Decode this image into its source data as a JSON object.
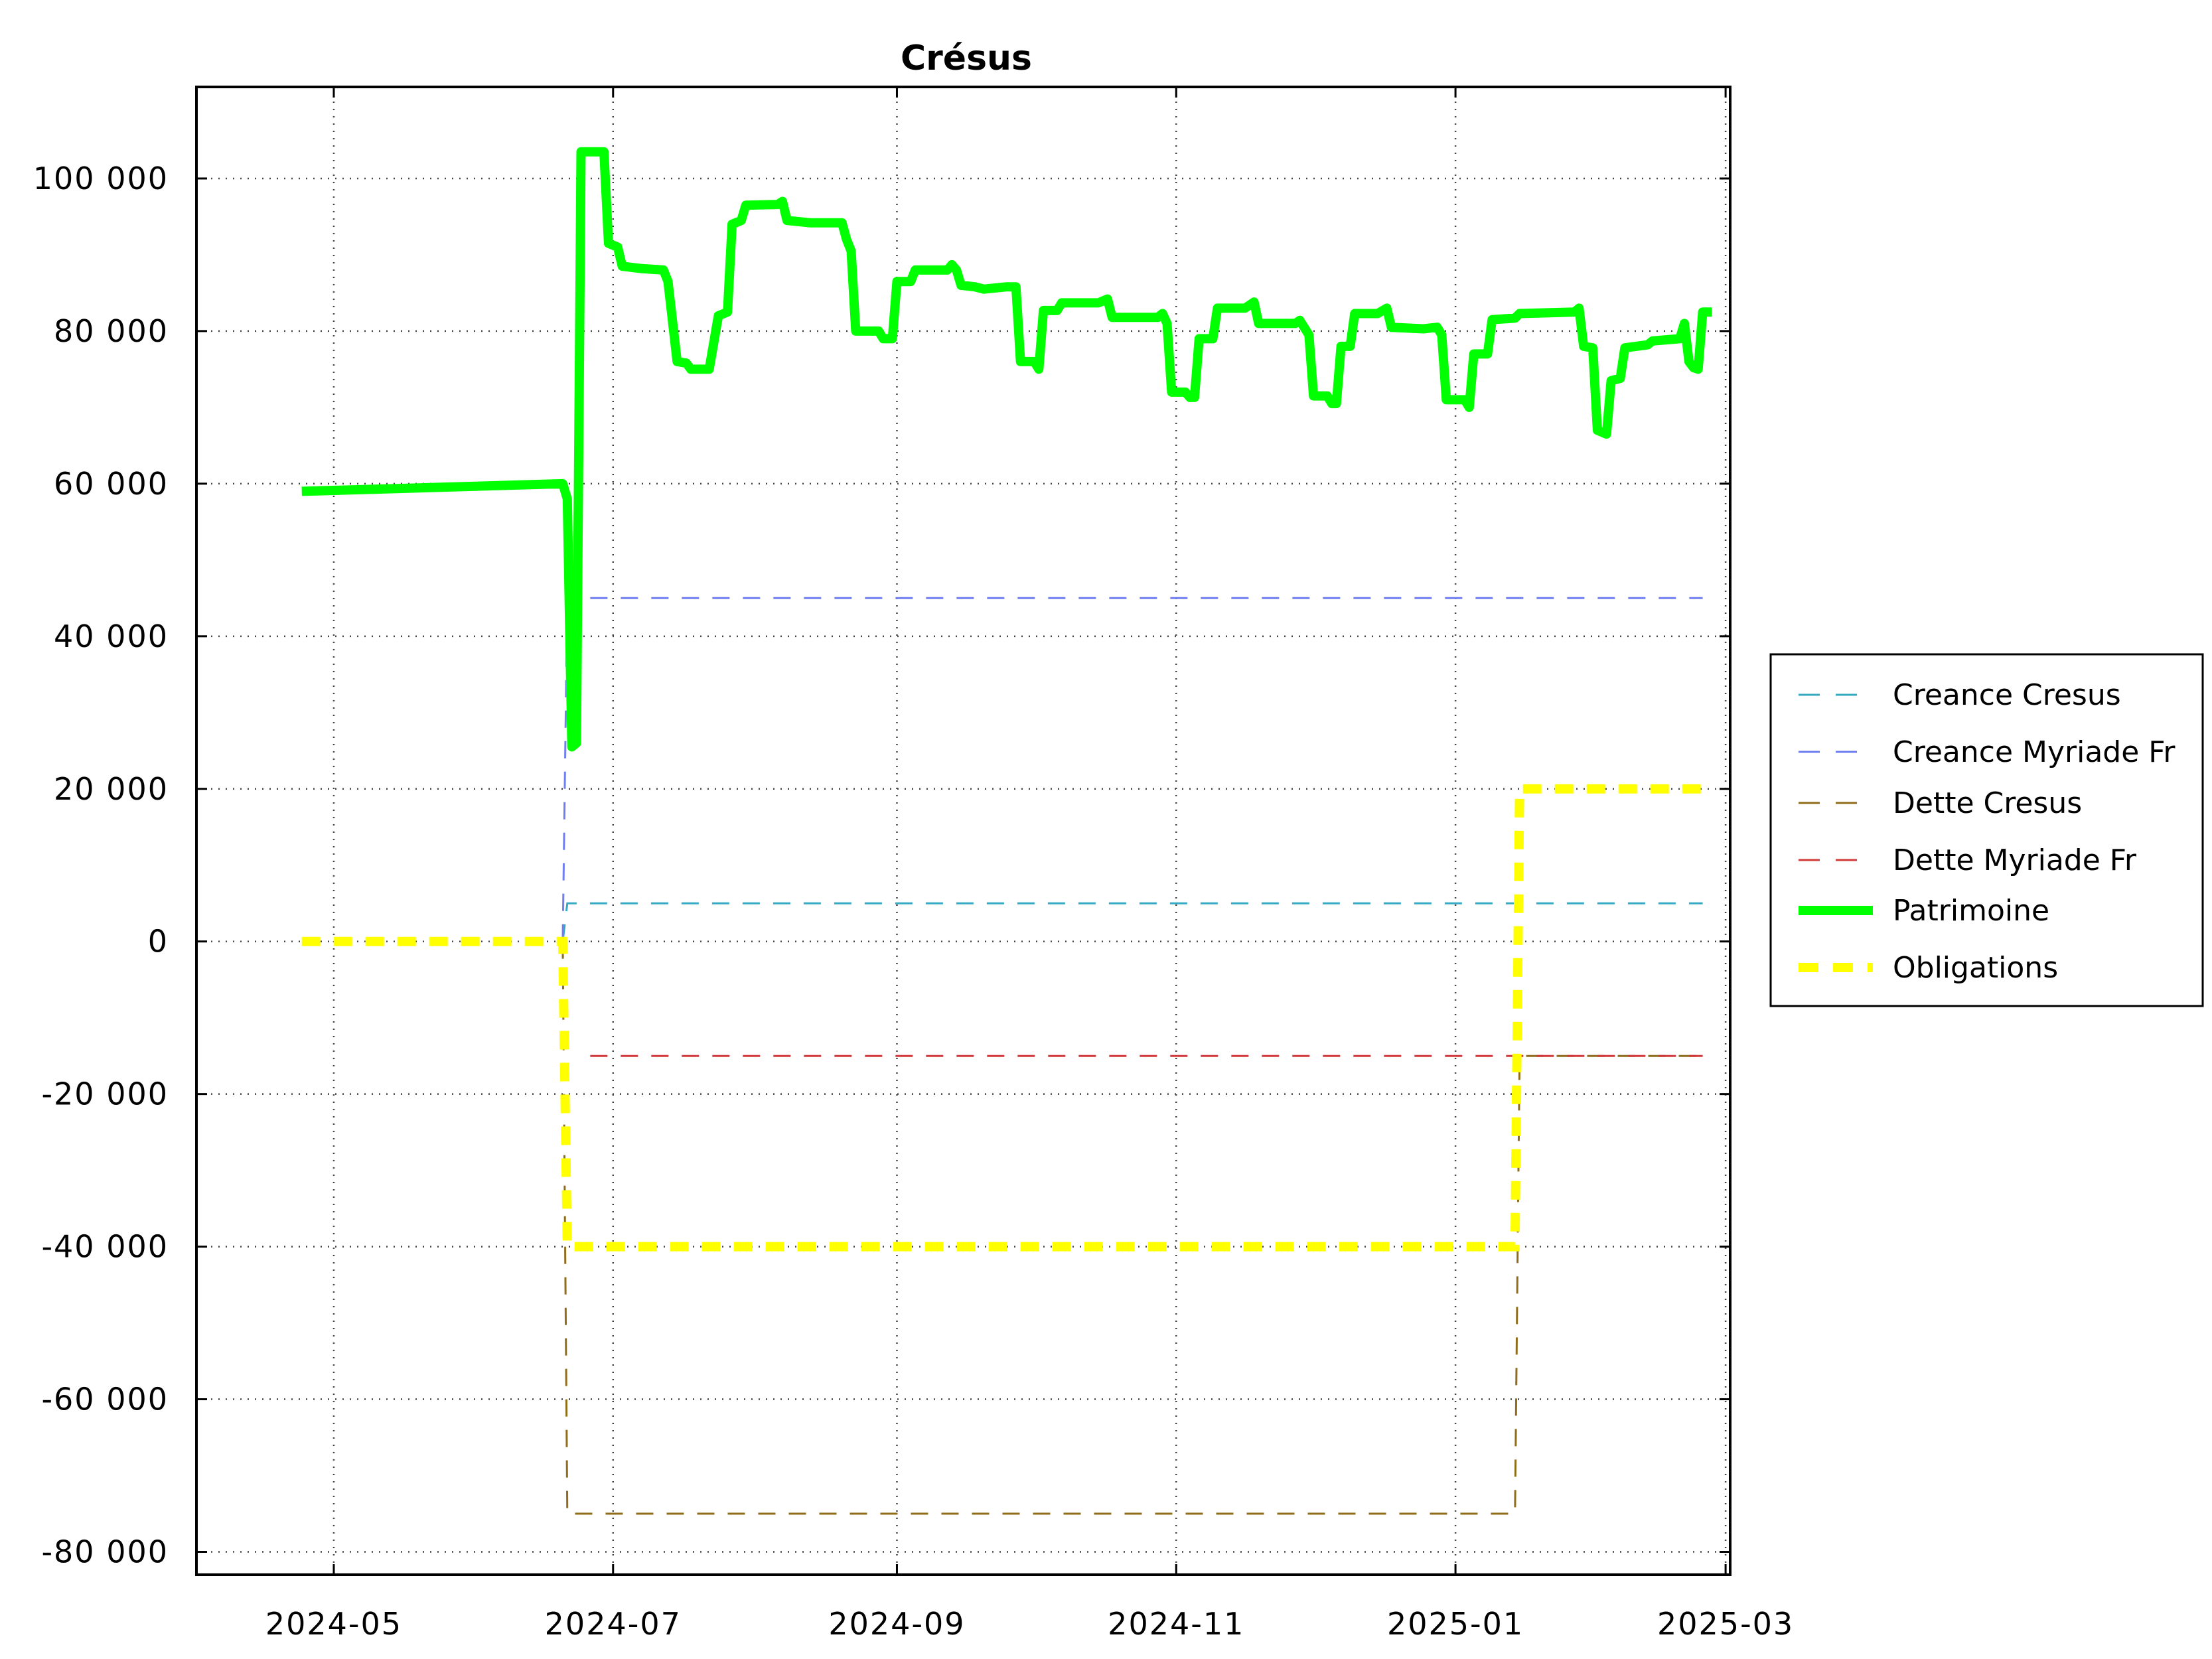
{
  "chart_data": {
    "type": "line",
    "title": "Crésus",
    "xlabel": "",
    "ylabel": "",
    "xlim": [
      "2024-04-01",
      "2025-03-02"
    ],
    "ylim": [
      -83000,
      112000
    ],
    "grid": true,
    "legend_position": "right",
    "x_ticks": [
      "2024-05",
      "2024-07",
      "2024-09",
      "2024-11",
      "2025-01",
      "2025-03"
    ],
    "x_tick_values": [
      "2024-05-01",
      "2024-07-01",
      "2024-09-01",
      "2024-11-01",
      "2025-01-01",
      "2025-03-01"
    ],
    "y_ticks": [
      "100 000",
      "80 000",
      "60 000",
      "40 000",
      "20 000",
      "0",
      "-20 000",
      "-40 000",
      "-60 000",
      "-80 000"
    ],
    "y_tick_values": [
      100000,
      80000,
      60000,
      40000,
      20000,
      0,
      -20000,
      -40000,
      -60000,
      -80000
    ],
    "series": [
      {
        "name": "Creance Cresus",
        "color": "#36a9c4",
        "style": "dashed",
        "points": [
          [
            "2024-06-20",
            0
          ],
          [
            "2024-06-21",
            5000
          ],
          [
            "2025-02-24",
            5000
          ]
        ]
      },
      {
        "name": "Creance Myriade Fr",
        "color": "#6f7ff0",
        "style": "dashed",
        "points": [
          [
            "2024-06-20",
            0
          ],
          [
            "2024-06-21",
            45000
          ],
          [
            "2025-02-24",
            45000
          ]
        ]
      },
      {
        "name": "Dette Cresus",
        "color": "#8f6d1a",
        "style": "dashed",
        "points": [
          [
            "2024-06-20",
            0
          ],
          [
            "2024-06-21",
            -75000
          ],
          [
            "2025-01-14",
            -75000
          ],
          [
            "2025-01-15",
            -15000
          ],
          [
            "2025-02-24",
            -15000
          ]
        ]
      },
      {
        "name": "Dette Myriade Fr",
        "color": "#d23a3a",
        "style": "dashed",
        "points": [
          [
            "2024-06-26",
            -15000
          ],
          [
            "2025-02-24",
            -15000
          ]
        ]
      },
      {
        "name": "Patrimoine",
        "color": "#00ff00",
        "style": "solid",
        "points": [
          [
            "2024-04-24",
            59000
          ],
          [
            "2024-06-20",
            60000
          ],
          [
            "2024-06-21",
            58000
          ],
          [
            "2024-06-22",
            25500
          ],
          [
            "2024-06-23",
            26000
          ],
          [
            "2024-06-24",
            103500
          ],
          [
            "2024-06-29",
            103500
          ],
          [
            "2024-06-30",
            91500
          ],
          [
            "2024-07-02",
            91000
          ],
          [
            "2024-07-03",
            88500
          ],
          [
            "2024-07-07",
            88200
          ],
          [
            "2024-07-12",
            88000
          ],
          [
            "2024-07-13",
            86500
          ],
          [
            "2024-07-15",
            76000
          ],
          [
            "2024-07-17",
            75800
          ],
          [
            "2024-07-18",
            75000
          ],
          [
            "2024-07-22",
            75000
          ],
          [
            "2024-07-24",
            82000
          ],
          [
            "2024-07-26",
            82500
          ],
          [
            "2024-07-27",
            94000
          ],
          [
            "2024-07-29",
            94500
          ],
          [
            "2024-07-30",
            96500
          ],
          [
            "2024-08-06",
            96600
          ],
          [
            "2024-08-07",
            97000
          ],
          [
            "2024-08-08",
            94500
          ],
          [
            "2024-08-13",
            94200
          ],
          [
            "2024-08-20",
            94200
          ],
          [
            "2024-08-21",
            92000
          ],
          [
            "2024-08-22",
            90500
          ],
          [
            "2024-08-23",
            80000
          ],
          [
            "2024-08-28",
            80000
          ],
          [
            "2024-08-29",
            79000
          ],
          [
            "2024-08-31",
            79000
          ],
          [
            "2024-09-01",
            86500
          ],
          [
            "2024-09-04",
            86500
          ],
          [
            "2024-09-05",
            88000
          ],
          [
            "2024-09-12",
            88000
          ],
          [
            "2024-09-13",
            88700
          ],
          [
            "2024-09-14",
            88000
          ],
          [
            "2024-09-15",
            86000
          ],
          [
            "2024-09-18",
            85800
          ],
          [
            "2024-09-20",
            85500
          ],
          [
            "2024-09-25",
            85800
          ],
          [
            "2024-09-27",
            85800
          ],
          [
            "2024-09-28",
            76000
          ],
          [
            "2024-10-01",
            76000
          ],
          [
            "2024-10-02",
            75000
          ],
          [
            "2024-10-03",
            82700
          ],
          [
            "2024-10-06",
            82700
          ],
          [
            "2024-10-07",
            83700
          ],
          [
            "2024-10-15",
            83700
          ],
          [
            "2024-10-17",
            84200
          ],
          [
            "2024-10-18",
            81800
          ],
          [
            "2024-10-28",
            81800
          ],
          [
            "2024-10-29",
            82300
          ],
          [
            "2024-10-30",
            81000
          ],
          [
            "2024-10-31",
            72000
          ],
          [
            "2024-11-03",
            72000
          ],
          [
            "2024-11-04",
            71300
          ],
          [
            "2024-11-05",
            71300
          ],
          [
            "2024-11-06",
            79000
          ],
          [
            "2024-11-09",
            79000
          ],
          [
            "2024-11-10",
            83000
          ],
          [
            "2024-11-16",
            83000
          ],
          [
            "2024-11-18",
            83800
          ],
          [
            "2024-11-19",
            81000
          ],
          [
            "2024-11-27",
            81000
          ],
          [
            "2024-11-28",
            81400
          ],
          [
            "2024-11-30",
            79500
          ],
          [
            "2024-12-01",
            71500
          ],
          [
            "2024-12-04",
            71500
          ],
          [
            "2024-12-05",
            70500
          ],
          [
            "2024-12-06",
            70500
          ],
          [
            "2024-12-07",
            78000
          ],
          [
            "2024-12-09",
            78000
          ],
          [
            "2024-12-10",
            82300
          ],
          [
            "2024-12-15",
            82300
          ],
          [
            "2024-12-17",
            83000
          ],
          [
            "2024-12-18",
            80500
          ],
          [
            "2024-12-25",
            80300
          ],
          [
            "2024-12-28",
            80500
          ],
          [
            "2024-12-29",
            79500
          ],
          [
            "2024-12-30",
            71000
          ],
          [
            "2025-01-03",
            71000
          ],
          [
            "2025-01-04",
            70000
          ],
          [
            "2025-01-05",
            77000
          ],
          [
            "2025-01-08",
            77000
          ],
          [
            "2025-01-09",
            81500
          ],
          [
            "2025-01-14",
            81700
          ],
          [
            "2025-01-15",
            82300
          ],
          [
            "2025-01-27",
            82500
          ],
          [
            "2025-01-28",
            83000
          ],
          [
            "2025-01-29",
            78000
          ],
          [
            "2025-01-31",
            77800
          ],
          [
            "2025-02-01",
            67000
          ],
          [
            "2025-02-03",
            66500
          ],
          [
            "2025-02-04",
            73500
          ],
          [
            "2025-02-06",
            73800
          ],
          [
            "2025-02-07",
            77800
          ],
          [
            "2025-02-12",
            78200
          ],
          [
            "2025-02-13",
            78700
          ],
          [
            "2025-02-19",
            79000
          ],
          [
            "2025-02-20",
            81000
          ],
          [
            "2025-02-21",
            76000
          ],
          [
            "2025-02-22",
            75200
          ],
          [
            "2025-02-23",
            75000
          ],
          [
            "2025-02-24",
            82500
          ],
          [
            "2025-02-26",
            82500
          ]
        ]
      },
      {
        "name": "Obligations",
        "color": "#ffff00",
        "style": "dashed",
        "points": [
          [
            "2024-04-24",
            0
          ],
          [
            "2024-06-20",
            0
          ],
          [
            "2024-06-21",
            -40000
          ],
          [
            "2025-01-14",
            -40000
          ],
          [
            "2025-01-15",
            20000
          ],
          [
            "2025-02-24",
            20000
          ]
        ]
      }
    ]
  }
}
